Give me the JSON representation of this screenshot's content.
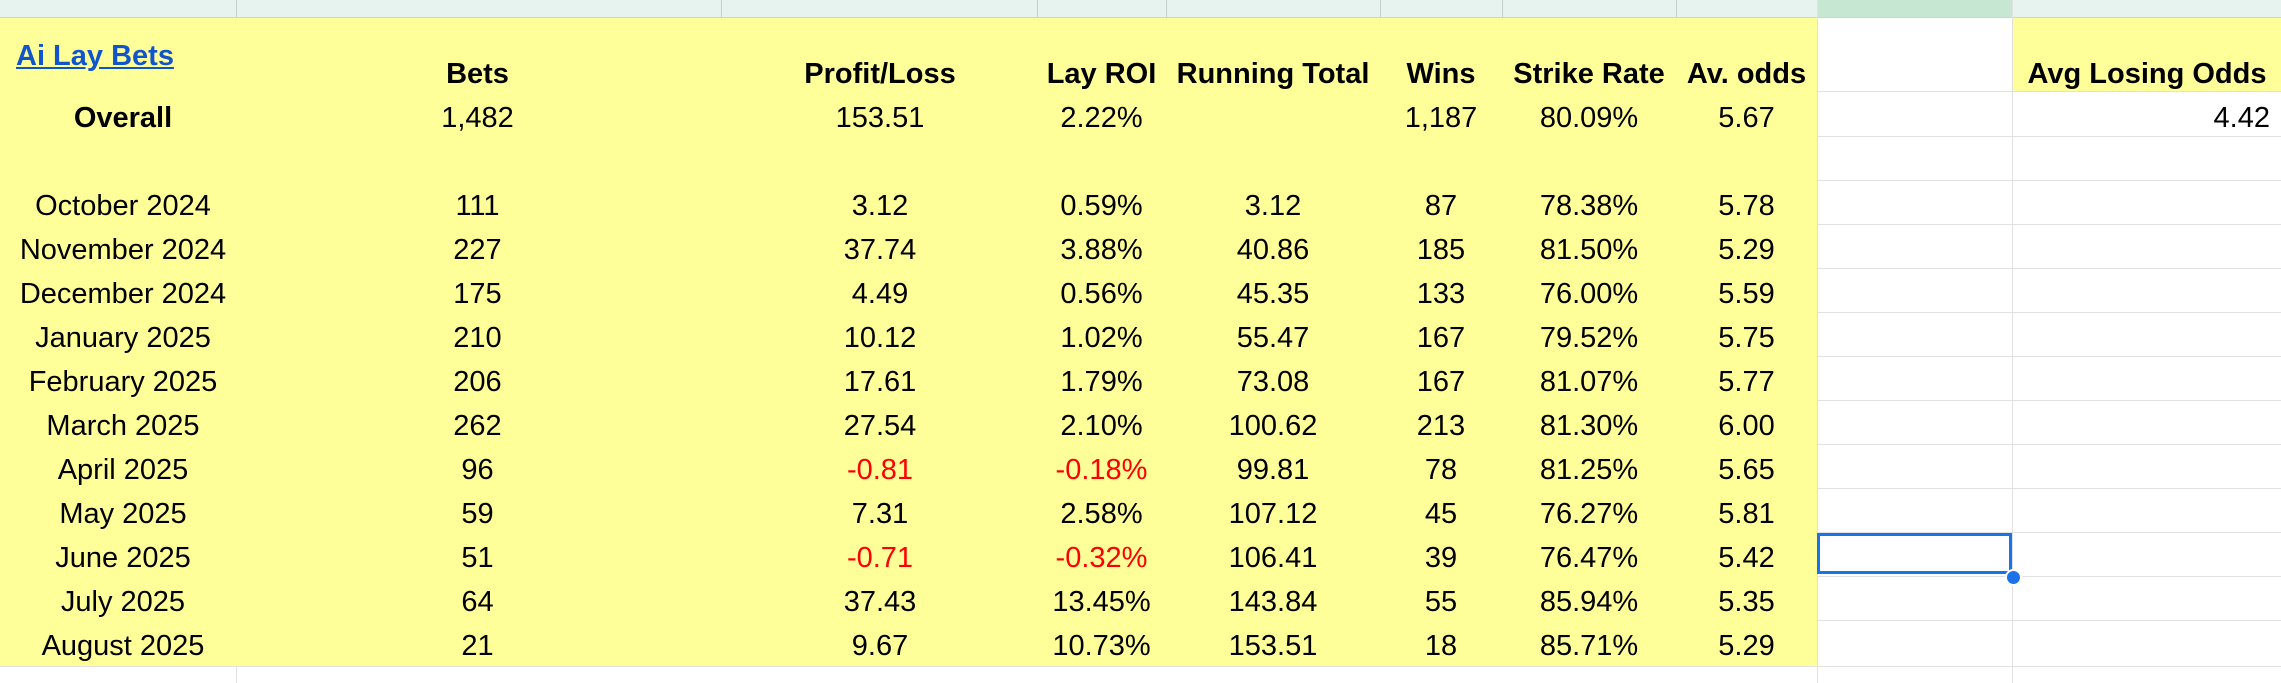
{
  "sheet": {
    "title_link": "Ai Lay Bets",
    "headers": {
      "bets": "Bets",
      "profit_loss": "Profit/Loss",
      "lay_roi": "Lay ROI",
      "running_total": "Running Total",
      "wins": "Wins",
      "strike_rate": "Strike Rate",
      "av_odds": "Av. odds",
      "avg_losing_odds": "Avg Losing Odds"
    },
    "overall": {
      "label": "Overall",
      "bets": "1,482",
      "profit_loss": "153.51",
      "lay_roi": "2.22%",
      "running_total": "",
      "wins": "1,187",
      "strike_rate": "80.09%",
      "av_odds": "5.67",
      "avg_losing_odds": "4.42"
    },
    "months": [
      {
        "month": "October 2024",
        "bets": "111",
        "profit_loss": "3.12",
        "lay_roi": "0.59%",
        "running_total": "3.12",
        "wins": "87",
        "strike_rate": "78.38%",
        "av_odds": "5.78",
        "negative": false
      },
      {
        "month": "November 2024",
        "bets": "227",
        "profit_loss": "37.74",
        "lay_roi": "3.88%",
        "running_total": "40.86",
        "wins": "185",
        "strike_rate": "81.50%",
        "av_odds": "5.29",
        "negative": false
      },
      {
        "month": "December 2024",
        "bets": "175",
        "profit_loss": "4.49",
        "lay_roi": "0.56%",
        "running_total": "45.35",
        "wins": "133",
        "strike_rate": "76.00%",
        "av_odds": "5.59",
        "negative": false
      },
      {
        "month": "January 2025",
        "bets": "210",
        "profit_loss": "10.12",
        "lay_roi": "1.02%",
        "running_total": "55.47",
        "wins": "167",
        "strike_rate": "79.52%",
        "av_odds": "5.75",
        "negative": false
      },
      {
        "month": "February 2025",
        "bets": "206",
        "profit_loss": "17.61",
        "lay_roi": "1.79%",
        "running_total": "73.08",
        "wins": "167",
        "strike_rate": "81.07%",
        "av_odds": "5.77",
        "negative": false
      },
      {
        "month": "March 2025",
        "bets": "262",
        "profit_loss": "27.54",
        "lay_roi": "2.10%",
        "running_total": "100.62",
        "wins": "213",
        "strike_rate": "81.30%",
        "av_odds": "6.00",
        "negative": false
      },
      {
        "month": "April 2025",
        "bets": "96",
        "profit_loss": "-0.81",
        "lay_roi": "-0.18%",
        "running_total": "99.81",
        "wins": "78",
        "strike_rate": "81.25%",
        "av_odds": "5.65",
        "negative": true
      },
      {
        "month": "May 2025",
        "bets": "59",
        "profit_loss": "7.31",
        "lay_roi": "2.58%",
        "running_total": "107.12",
        "wins": "45",
        "strike_rate": "76.27%",
        "av_odds": "5.81",
        "negative": false
      },
      {
        "month": "June 2025",
        "bets": "51",
        "profit_loss": "-0.71",
        "lay_roi": "-0.32%",
        "running_total": "106.41",
        "wins": "39",
        "strike_rate": "76.47%",
        "av_odds": "5.42",
        "negative": true
      },
      {
        "month": "July 2025",
        "bets": "64",
        "profit_loss": "37.43",
        "lay_roi": "13.45%",
        "running_total": "143.84",
        "wins": "55",
        "strike_rate": "85.94%",
        "av_odds": "5.35",
        "negative": false
      },
      {
        "month": "August 2025",
        "bets": "21",
        "profit_loss": "9.67",
        "lay_roi": "10.73%",
        "running_total": "153.51",
        "wins": "18",
        "strike_rate": "85.71%",
        "av_odds": "5.29",
        "negative": false
      }
    ],
    "colors": {
      "highlight": "#ffff99",
      "negative": "#ff0000",
      "link": "#1155cc",
      "selection": "#1a73e8"
    }
  }
}
